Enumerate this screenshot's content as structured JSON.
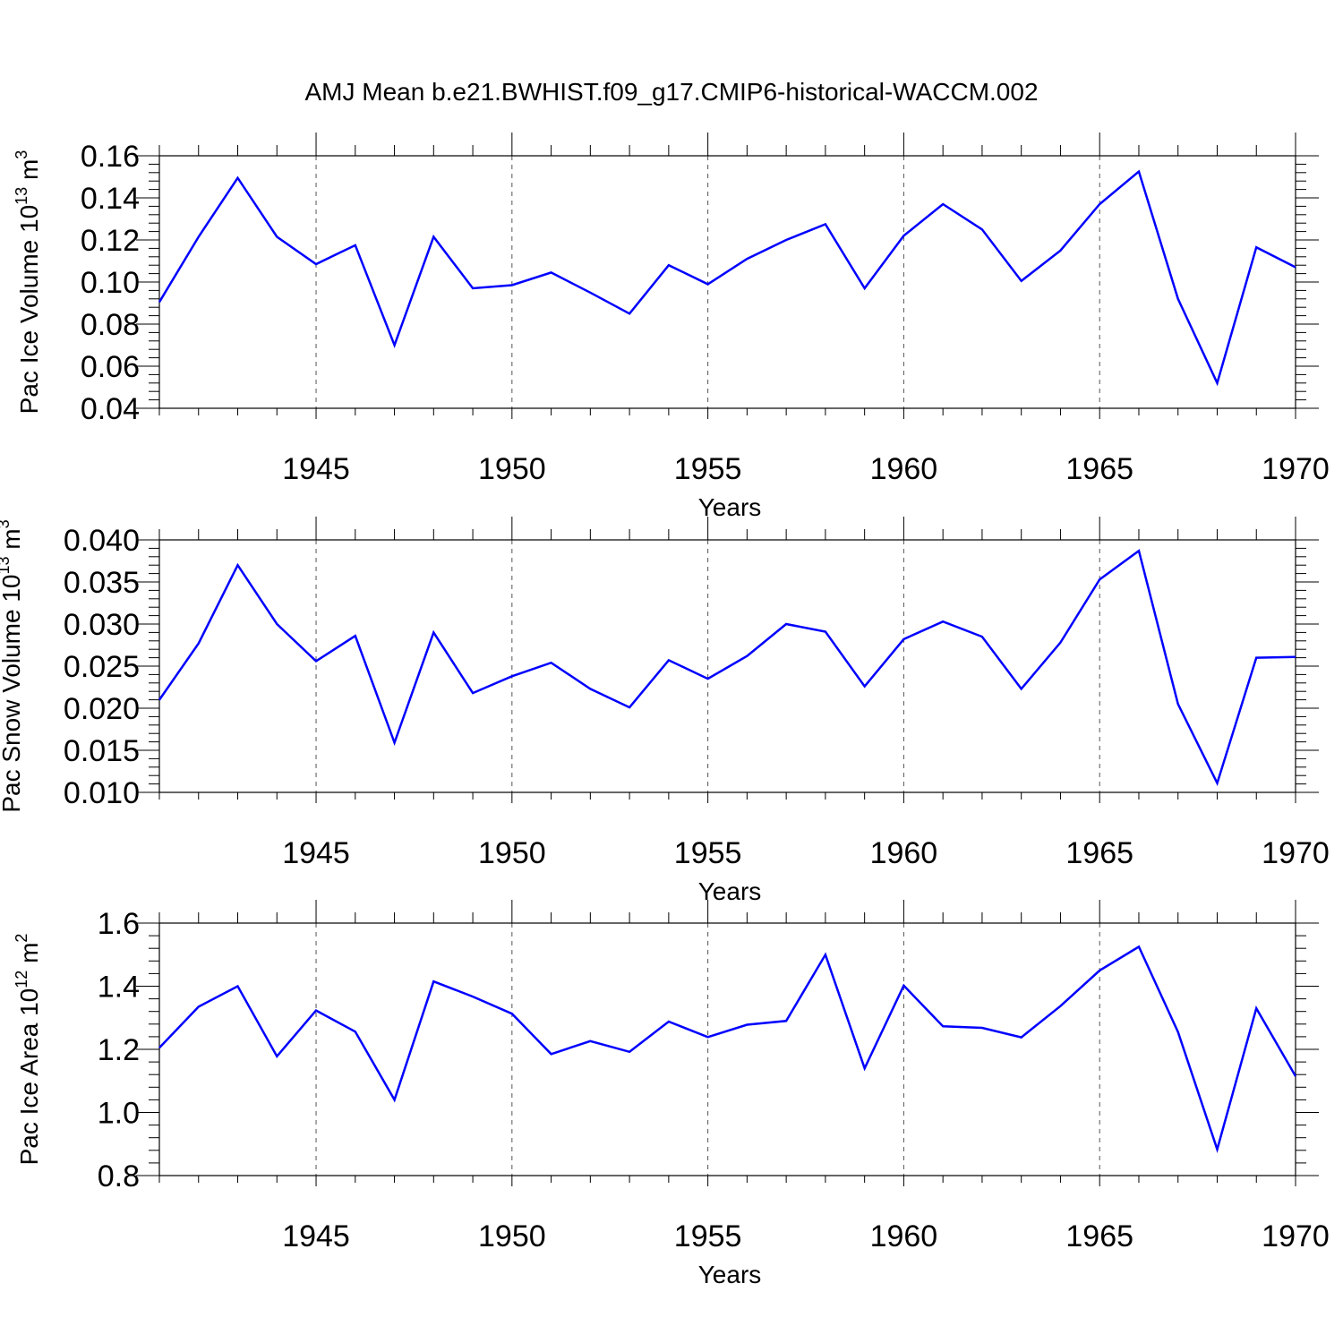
{
  "title": "AMJ Mean b.e21.BWHIST.f09_g17.CMIP6-historical-WACCM.002",
  "colors": {
    "series": "#0000ff",
    "axis": "#000000",
    "grid": "#555555"
  },
  "chart_data": [
    {
      "type": "line",
      "ylabel_main": "Pac Ice Volume 10",
      "ylabel_exp": "13",
      "ylabel_unit": " m",
      "ylabel_unit_exp": "3",
      "xlabel": "Years",
      "xlim": [
        1941,
        1970
      ],
      "ylim": [
        0.04,
        0.16
      ],
      "xticks": [
        1945,
        1950,
        1955,
        1960,
        1965,
        1970
      ],
      "xtick_labels": [
        "1945",
        "1950",
        "1955",
        "1960",
        "1965",
        "1970"
      ],
      "yticks": [
        0.04,
        0.06,
        0.08,
        0.1,
        0.12,
        0.14,
        0.16
      ],
      "ytick_labels": [
        "0.04",
        "0.06",
        "0.08",
        "0.10",
        "0.12",
        "0.14",
        "0.16"
      ],
      "y_minor_step": 0.004,
      "grid": "vertical-dashed",
      "x": [
        1941,
        1942,
        1943,
        1944,
        1945,
        1946,
        1947,
        1948,
        1949,
        1950,
        1951,
        1952,
        1953,
        1954,
        1955,
        1956,
        1957,
        1958,
        1959,
        1960,
        1961,
        1962,
        1963,
        1964,
        1965,
        1966,
        1967,
        1968,
        1969,
        1970
      ],
      "series": [
        {
          "name": "Pac Ice Volume",
          "values": [
            0.0905,
            0.1215,
            0.1495,
            0.1215,
            0.1085,
            0.1175,
            0.07,
            0.1215,
            0.097,
            0.0985,
            0.1045,
            0.095,
            0.085,
            0.108,
            0.099,
            0.111,
            0.12,
            0.1275,
            0.097,
            0.122,
            0.137,
            0.125,
            0.1005,
            0.115,
            0.137,
            0.1525,
            0.092,
            0.052,
            0.1165,
            0.107
          ]
        }
      ]
    },
    {
      "type": "line",
      "ylabel_main": "Pac Snow Volume 10",
      "ylabel_exp": "13",
      "ylabel_unit": " m",
      "ylabel_unit_exp": "3",
      "xlabel": "Years",
      "xlim": [
        1941,
        1970
      ],
      "ylim": [
        0.01,
        0.04
      ],
      "xticks": [
        1945,
        1950,
        1955,
        1960,
        1965,
        1970
      ],
      "xtick_labels": [
        "1945",
        "1950",
        "1955",
        "1960",
        "1965",
        "1970"
      ],
      "yticks": [
        0.01,
        0.015,
        0.02,
        0.025,
        0.03,
        0.035,
        0.04
      ],
      "ytick_labels": [
        "0.010",
        "0.015",
        "0.020",
        "0.025",
        "0.030",
        "0.035",
        "0.040"
      ],
      "y_minor_step": 0.001,
      "grid": "vertical-dashed",
      "x": [
        1941,
        1942,
        1943,
        1944,
        1945,
        1946,
        1947,
        1948,
        1949,
        1950,
        1951,
        1952,
        1953,
        1954,
        1955,
        1956,
        1957,
        1958,
        1959,
        1960,
        1961,
        1962,
        1963,
        1964,
        1965,
        1966,
        1967,
        1968,
        1969,
        1970
      ],
      "series": [
        {
          "name": "Pac Snow Volume",
          "values": [
            0.021,
            0.0277,
            0.037,
            0.03,
            0.0256,
            0.0286,
            0.0159,
            0.029,
            0.0218,
            0.0238,
            0.0254,
            0.0223,
            0.0201,
            0.0257,
            0.0235,
            0.0262,
            0.03,
            0.0291,
            0.0226,
            0.0282,
            0.0303,
            0.0285,
            0.0223,
            0.0278,
            0.0353,
            0.0387,
            0.0205,
            0.0111,
            0.026,
            0.0261
          ]
        }
      ]
    },
    {
      "type": "line",
      "ylabel_main": "Pac Ice Area 10",
      "ylabel_exp": "12",
      "ylabel_unit": " m",
      "ylabel_unit_exp": "2",
      "xlabel": "Years",
      "xlim": [
        1941,
        1970
      ],
      "ylim": [
        0.8,
        1.6
      ],
      "xticks": [
        1945,
        1950,
        1955,
        1960,
        1965,
        1970
      ],
      "xtick_labels": [
        "1945",
        "1950",
        "1955",
        "1960",
        "1965",
        "1970"
      ],
      "yticks": [
        0.8,
        1.0,
        1.2,
        1.4,
        1.6
      ],
      "ytick_labels": [
        "0.8",
        "1.0",
        "1.2",
        "1.4",
        "1.6"
      ],
      "y_minor_step": 0.04,
      "grid": "vertical-dashed",
      "x": [
        1941,
        1942,
        1943,
        1944,
        1945,
        1946,
        1947,
        1948,
        1949,
        1950,
        1951,
        1952,
        1953,
        1954,
        1955,
        1956,
        1957,
        1958,
        1959,
        1960,
        1961,
        1962,
        1963,
        1964,
        1965,
        1966,
        1967,
        1968,
        1969,
        1970
      ],
      "series": [
        {
          "name": "Pac Ice Area",
          "values": [
            1.205,
            1.335,
            1.4,
            1.178,
            1.323,
            1.256,
            1.04,
            1.415,
            1.367,
            1.313,
            1.185,
            1.226,
            1.192,
            1.288,
            1.239,
            1.278,
            1.29,
            1.5,
            1.14,
            1.402,
            1.273,
            1.268,
            1.238,
            1.337,
            1.45,
            1.525,
            1.255,
            0.883,
            1.33,
            1.115
          ]
        }
      ]
    }
  ]
}
